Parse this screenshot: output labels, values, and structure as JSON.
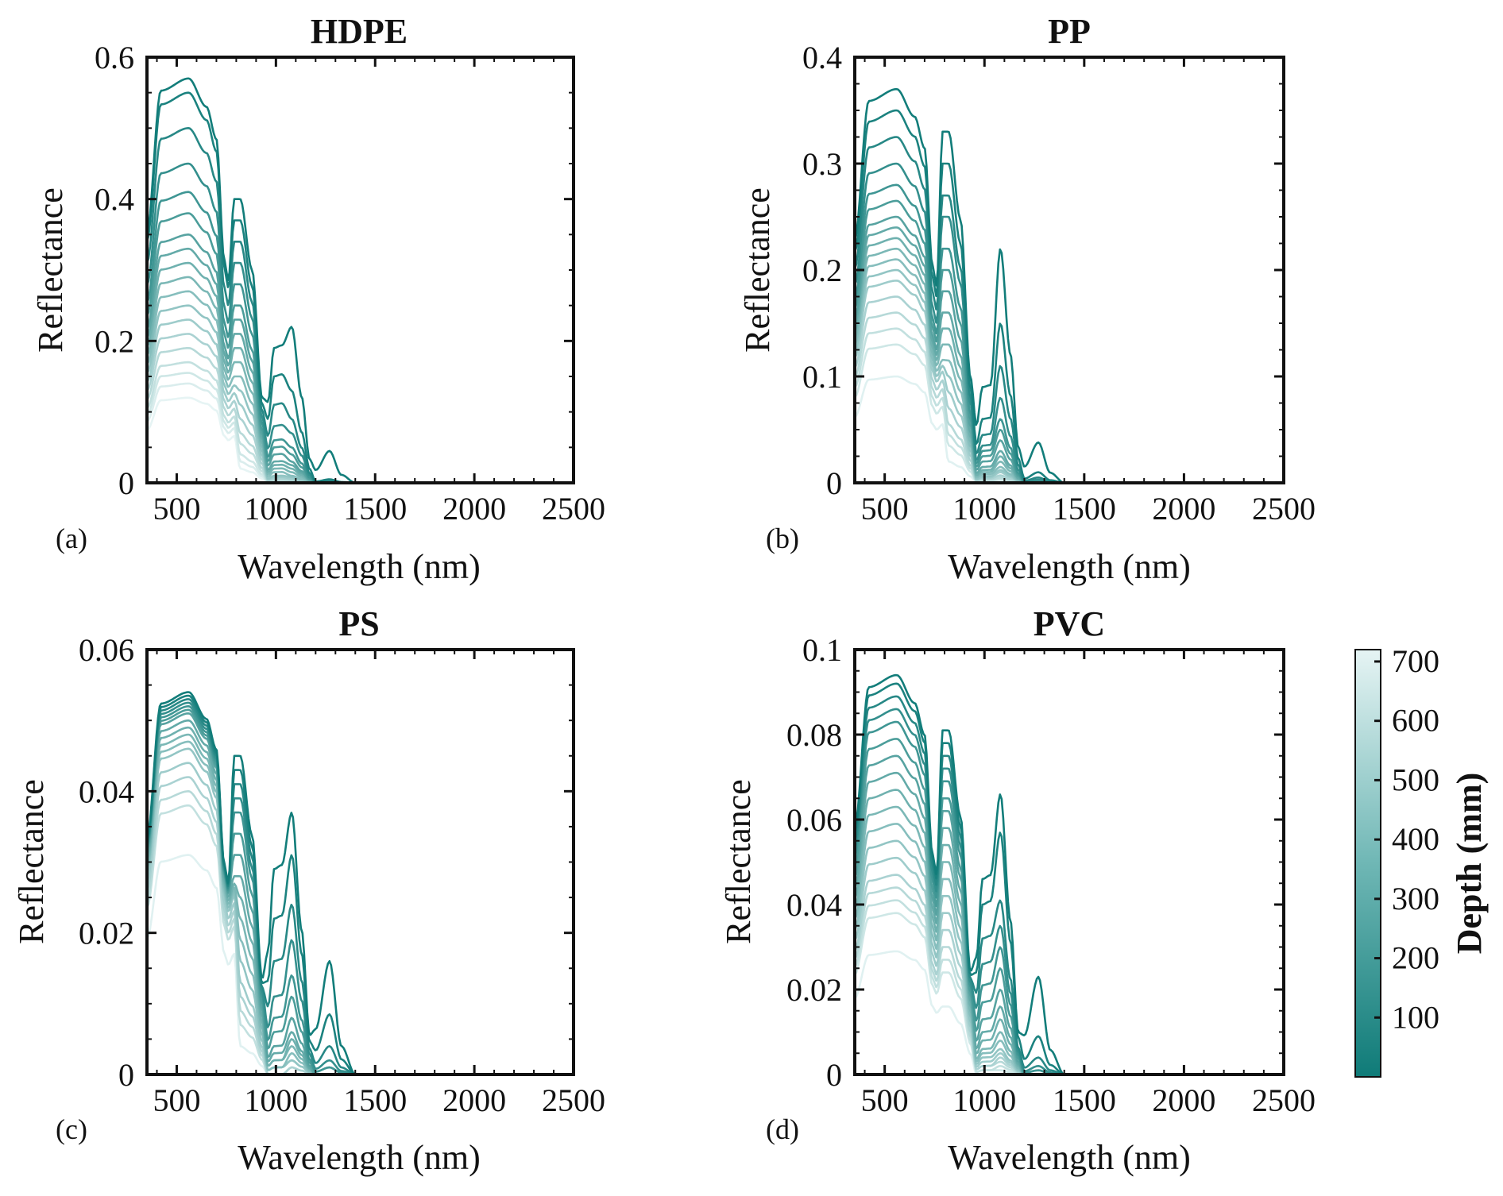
{
  "colors": {
    "shallow": "#0f7b78",
    "deep": "#e6f4f4",
    "axis": "#111111"
  },
  "colorbar": {
    "label": "Depth (mm)",
    "ticks": [
      "100",
      "200",
      "300",
      "400",
      "500",
      "600",
      "700"
    ],
    "range": [
      0,
      720
    ]
  },
  "chart_data": [
    {
      "type": "line",
      "title": "HDPE",
      "panel": "(a)",
      "xlabel": "Wavelength (nm)",
      "ylabel": "Reflectance",
      "xlim": [
        350,
        2500
      ],
      "ylim": [
        0,
        0.6
      ],
      "xticks": [
        500,
        1000,
        1500,
        2000,
        2500
      ],
      "yticks": [
        0,
        0.2,
        0.4,
        0.6
      ],
      "ytick_labels": [
        "0",
        "0.2",
        "0.4",
        "0.6"
      ],
      "series": [
        {
          "depth": 10,
          "peak": 0.57,
          "nir": [
            0.4,
            0.19,
            0.22,
            0.045
          ]
        },
        {
          "depth": 40,
          "peak": 0.55,
          "nir": [
            0.37,
            0.15,
            0.13,
            0.005
          ]
        },
        {
          "depth": 80,
          "peak": 0.5,
          "nir": [
            0.34,
            0.11,
            0.09,
            0.003
          ]
        },
        {
          "depth": 120,
          "peak": 0.45,
          "nir": [
            0.31,
            0.08,
            0.07,
            0.002
          ]
        },
        {
          "depth": 160,
          "peak": 0.41,
          "nir": [
            0.28,
            0.06,
            0.05,
            0.002
          ]
        },
        {
          "depth": 200,
          "peak": 0.38,
          "nir": [
            0.25,
            0.05,
            0.04,
            0.001
          ]
        },
        {
          "depth": 240,
          "peak": 0.35,
          "nir": [
            0.23,
            0.04,
            0.03,
            0.001
          ]
        },
        {
          "depth": 280,
          "peak": 0.33,
          "nir": [
            0.21,
            0.03,
            0.025,
            0.001
          ]
        },
        {
          "depth": 320,
          "peak": 0.31,
          "nir": [
            0.19,
            0.025,
            0.02,
            0.0
          ]
        },
        {
          "depth": 360,
          "peak": 0.29,
          "nir": [
            0.17,
            0.02,
            0.015,
            0.0
          ]
        },
        {
          "depth": 400,
          "peak": 0.27,
          "nir": [
            0.15,
            0.015,
            0.01,
            0.0
          ]
        },
        {
          "depth": 440,
          "peak": 0.25,
          "nir": [
            0.13,
            0.01,
            0.008,
            0.0
          ]
        },
        {
          "depth": 480,
          "peak": 0.23,
          "nir": [
            0.11,
            0.008,
            0.006,
            0.0
          ]
        },
        {
          "depth": 520,
          "peak": 0.21,
          "nir": [
            0.09,
            0.006,
            0.004,
            0.0
          ]
        },
        {
          "depth": 560,
          "peak": 0.19,
          "nir": [
            0.07,
            0.004,
            0.003,
            0.0
          ]
        },
        {
          "depth": 600,
          "peak": 0.17,
          "nir": [
            0.055,
            0.003,
            0.002,
            0.0
          ]
        },
        {
          "depth": 640,
          "peak": 0.155,
          "nir": [
            0.04,
            0.002,
            0.001,
            0.0
          ]
        },
        {
          "depth": 680,
          "peak": 0.14,
          "nir": [
            0.03,
            0.001,
            0.001,
            0.0
          ]
        },
        {
          "depth": 720,
          "peak": 0.12,
          "nir": [
            0.02,
            0.001,
            0.0,
            0.0
          ]
        }
      ]
    },
    {
      "type": "line",
      "title": "PP",
      "panel": "(b)",
      "xlabel": "Wavelength (nm)",
      "ylabel": "Reflectance",
      "xlim": [
        350,
        2500
      ],
      "ylim": [
        0,
        0.4
      ],
      "xticks": [
        500,
        1000,
        1500,
        2000,
        2500
      ],
      "yticks": [
        0,
        0.1,
        0.2,
        0.3,
        0.4
      ],
      "ytick_labels": [
        "0",
        "0.1",
        "0.2",
        "0.3",
        "0.4"
      ],
      "series": [
        {
          "depth": 10,
          "peak": 0.37,
          "nir": [
            0.33,
            0.09,
            0.22,
            0.038
          ]
        },
        {
          "depth": 40,
          "peak": 0.35,
          "nir": [
            0.3,
            0.06,
            0.15,
            0.01
          ]
        },
        {
          "depth": 80,
          "peak": 0.325,
          "nir": [
            0.27,
            0.045,
            0.11,
            0.005
          ]
        },
        {
          "depth": 120,
          "peak": 0.3,
          "nir": [
            0.25,
            0.035,
            0.08,
            0.003
          ]
        },
        {
          "depth": 160,
          "peak": 0.28,
          "nir": [
            0.22,
            0.03,
            0.06,
            0.002
          ]
        },
        {
          "depth": 200,
          "peak": 0.265,
          "nir": [
            0.2,
            0.025,
            0.05,
            0.001
          ]
        },
        {
          "depth": 240,
          "peak": 0.25,
          "nir": [
            0.18,
            0.02,
            0.04,
            0.001
          ]
        },
        {
          "depth": 280,
          "peak": 0.24,
          "nir": [
            0.16,
            0.015,
            0.03,
            0.0
          ]
        },
        {
          "depth": 320,
          "peak": 0.23,
          "nir": [
            0.145,
            0.012,
            0.025,
            0.0
          ]
        },
        {
          "depth": 360,
          "peak": 0.22,
          "nir": [
            0.13,
            0.01,
            0.02,
            0.0
          ]
        },
        {
          "depth": 400,
          "peak": 0.21,
          "nir": [
            0.115,
            0.008,
            0.015,
            0.0
          ]
        },
        {
          "depth": 440,
          "peak": 0.2,
          "nir": [
            0.1,
            0.006,
            0.012,
            0.0
          ]
        },
        {
          "depth": 480,
          "peak": 0.19,
          "nir": [
            0.085,
            0.005,
            0.01,
            0.0
          ]
        },
        {
          "depth": 520,
          "peak": 0.175,
          "nir": [
            0.07,
            0.004,
            0.007,
            0.0
          ]
        },
        {
          "depth": 560,
          "peak": 0.16,
          "nir": [
            0.055,
            0.003,
            0.005,
            0.0
          ]
        },
        {
          "depth": 600,
          "peak": 0.145,
          "nir": [
            0.045,
            0.002,
            0.004,
            0.0
          ]
        },
        {
          "depth": 640,
          "peak": 0.13,
          "nir": [
            0.035,
            0.002,
            0.003,
            0.0
          ]
        },
        {
          "depth": 700,
          "peak": 0.1,
          "nir": [
            0.02,
            0.001,
            0.001,
            0.0
          ]
        }
      ]
    },
    {
      "type": "line",
      "title": "PS",
      "panel": "(c)",
      "xlabel": "Wavelength (nm)",
      "ylabel": "Reflectance",
      "xlim": [
        350,
        2500
      ],
      "ylim": [
        0,
        0.06
      ],
      "xticks": [
        500,
        1000,
        1500,
        2000,
        2500
      ],
      "yticks": [
        0,
        0.02,
        0.04,
        0.06
      ],
      "ytick_labels": [
        "0",
        "0.02",
        "0.04",
        "0.06"
      ],
      "series": [
        {
          "depth": 10,
          "peak": 0.054,
          "nir": [
            0.045,
            0.029,
            0.037,
            0.016
          ]
        },
        {
          "depth": 40,
          "peak": 0.0535,
          "nir": [
            0.043,
            0.022,
            0.031,
            0.0085
          ]
        },
        {
          "depth": 80,
          "peak": 0.053,
          "nir": [
            0.041,
            0.016,
            0.024,
            0.004
          ]
        },
        {
          "depth": 120,
          "peak": 0.0525,
          "nir": [
            0.039,
            0.011,
            0.019,
            0.002
          ]
        },
        {
          "depth": 160,
          "peak": 0.052,
          "nir": [
            0.037,
            0.008,
            0.014,
            0.001
          ]
        },
        {
          "depth": 200,
          "peak": 0.0515,
          "nir": [
            0.034,
            0.006,
            0.011,
            0.001
          ]
        },
        {
          "depth": 240,
          "peak": 0.051,
          "nir": [
            0.031,
            0.004,
            0.008,
            0.0
          ]
        },
        {
          "depth": 280,
          "peak": 0.05,
          "nir": [
            0.028,
            0.003,
            0.006,
            0.0
          ]
        },
        {
          "depth": 320,
          "peak": 0.049,
          "nir": [
            0.025,
            0.002,
            0.005,
            0.0
          ]
        },
        {
          "depth": 360,
          "peak": 0.048,
          "nir": [
            0.022,
            0.002,
            0.004,
            0.0
          ]
        },
        {
          "depth": 400,
          "peak": 0.047,
          "nir": [
            0.019,
            0.001,
            0.003,
            0.0
          ]
        },
        {
          "depth": 440,
          "peak": 0.046,
          "nir": [
            0.016,
            0.001,
            0.002,
            0.0
          ]
        },
        {
          "depth": 480,
          "peak": 0.044,
          "nir": [
            0.013,
            0.001,
            0.002,
            0.0
          ]
        },
        {
          "depth": 520,
          "peak": 0.042,
          "nir": [
            0.011,
            0.0,
            0.001,
            0.0
          ]
        },
        {
          "depth": 560,
          "peak": 0.04,
          "nir": [
            0.009,
            0.0,
            0.001,
            0.0
          ]
        },
        {
          "depth": 600,
          "peak": 0.038,
          "nir": [
            0.007,
            0.0,
            0.0,
            0.0
          ]
        },
        {
          "depth": 700,
          "peak": 0.031,
          "nir": [
            0.004,
            0.0,
            0.0,
            0.0
          ]
        }
      ]
    },
    {
      "type": "line",
      "title": "PVC",
      "panel": "(d)",
      "xlabel": "Wavelength (nm)",
      "ylabel": "Reflectance",
      "xlim": [
        350,
        2500
      ],
      "ylim": [
        0,
        0.1
      ],
      "xticks": [
        500,
        1000,
        1500,
        2000,
        2500
      ],
      "yticks": [
        0,
        0.02,
        0.04,
        0.06,
        0.08,
        0.1
      ],
      "ytick_labels": [
        "0",
        "0.02",
        "0.04",
        "0.06",
        "0.08",
        "0.1"
      ],
      "series": [
        {
          "depth": 10,
          "peak": 0.094,
          "nir": [
            0.081,
            0.046,
            0.066,
            0.023
          ]
        },
        {
          "depth": 40,
          "peak": 0.092,
          "nir": [
            0.078,
            0.04,
            0.057,
            0.009
          ]
        },
        {
          "depth": 80,
          "peak": 0.089,
          "nir": [
            0.075,
            0.032,
            0.041,
            0.004
          ]
        },
        {
          "depth": 120,
          "peak": 0.086,
          "nir": [
            0.072,
            0.026,
            0.035,
            0.002
          ]
        },
        {
          "depth": 160,
          "peak": 0.083,
          "nir": [
            0.069,
            0.021,
            0.03,
            0.001
          ]
        },
        {
          "depth": 200,
          "peak": 0.079,
          "nir": [
            0.065,
            0.017,
            0.025,
            0.001
          ]
        },
        {
          "depth": 240,
          "peak": 0.075,
          "nir": [
            0.062,
            0.013,
            0.02,
            0.0
          ]
        },
        {
          "depth": 280,
          "peak": 0.071,
          "nir": [
            0.058,
            0.01,
            0.016,
            0.0
          ]
        },
        {
          "depth": 320,
          "peak": 0.067,
          "nir": [
            0.054,
            0.008,
            0.013,
            0.0
          ]
        },
        {
          "depth": 360,
          "peak": 0.063,
          "nir": [
            0.05,
            0.006,
            0.01,
            0.0
          ]
        },
        {
          "depth": 400,
          "peak": 0.059,
          "nir": [
            0.046,
            0.005,
            0.008,
            0.0
          ]
        },
        {
          "depth": 440,
          "peak": 0.055,
          "nir": [
            0.042,
            0.004,
            0.006,
            0.0
          ]
        },
        {
          "depth": 480,
          "peak": 0.051,
          "nir": [
            0.038,
            0.003,
            0.005,
            0.0
          ]
        },
        {
          "depth": 520,
          "peak": 0.047,
          "nir": [
            0.034,
            0.002,
            0.004,
            0.0
          ]
        },
        {
          "depth": 560,
          "peak": 0.044,
          "nir": [
            0.03,
            0.002,
            0.003,
            0.0
          ]
        },
        {
          "depth": 600,
          "peak": 0.041,
          "nir": [
            0.027,
            0.001,
            0.002,
            0.0
          ]
        },
        {
          "depth": 640,
          "peak": 0.038,
          "nir": [
            0.024,
            0.001,
            0.001,
            0.0
          ]
        },
        {
          "depth": 700,
          "peak": 0.029,
          "nir": [
            0.016,
            0.0,
            0.0,
            0.0
          ]
        }
      ]
    }
  ]
}
